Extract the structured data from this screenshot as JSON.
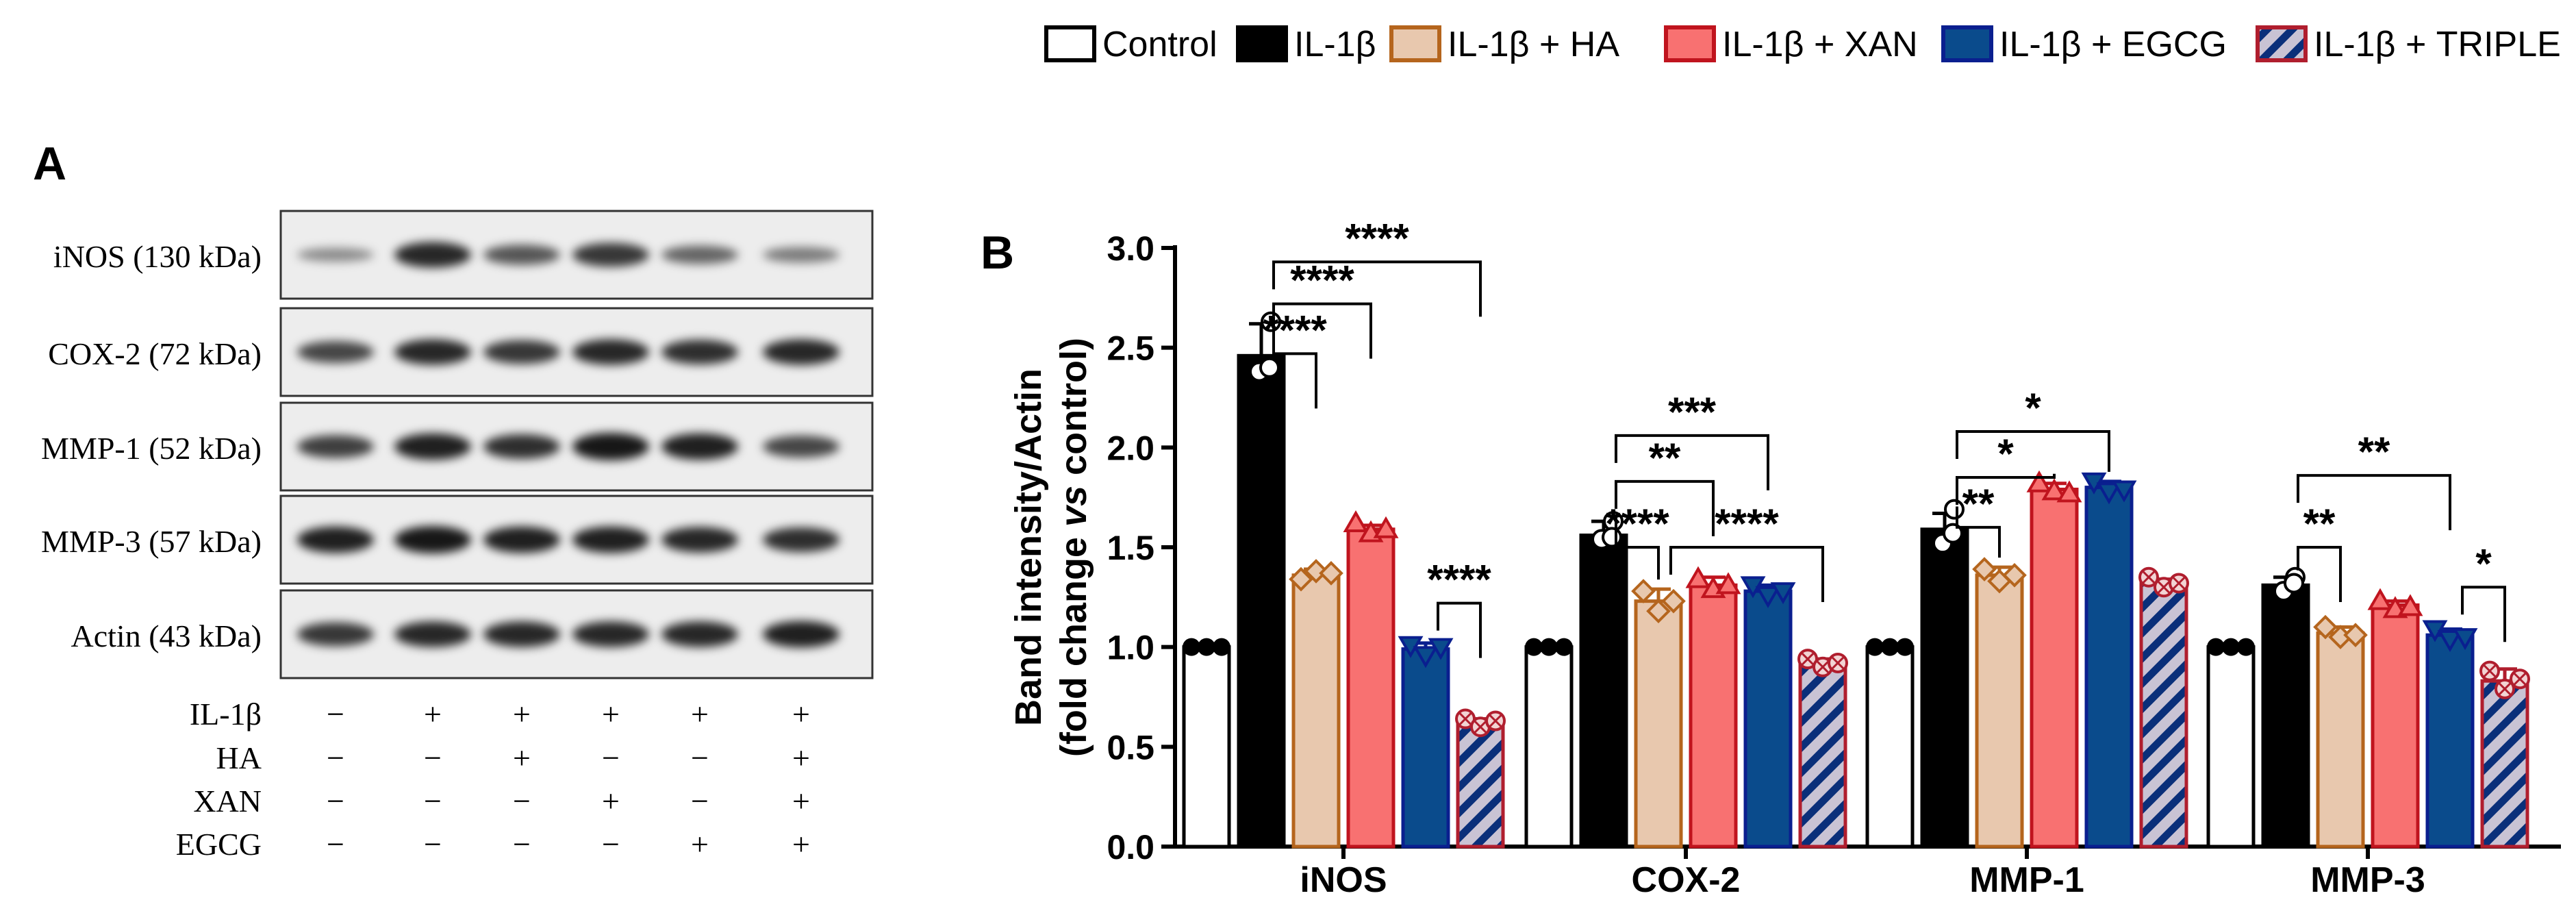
{
  "legend": [
    {
      "label": "Control",
      "fill": "#ffffff",
      "stroke": "#000000",
      "pattern": false
    },
    {
      "label": "IL-1β",
      "fill": "#000000",
      "stroke": "#000000",
      "pattern": false
    },
    {
      "label": "IL-1β + HA",
      "fill": "#e8c8ae",
      "stroke": "#b5651d",
      "pattern": false
    },
    {
      "label": "IL-1β + XAN",
      "fill": "#f87171",
      "stroke": "#c0141e",
      "pattern": false
    },
    {
      "label": "IL-1β + EGCG",
      "fill": "#0a4b8c",
      "stroke": "#0a1f8f",
      "pattern": false
    },
    {
      "label": "IL-1β + TRIPLE",
      "fill": "#c9c3d4",
      "stroke": "#b01e2e",
      "pattern": true
    }
  ],
  "panel_a": {
    "label": "A",
    "blots": [
      "iNOS (130 kDa)",
      "COX-2 (72 kDa)",
      "MMP-1 (52 kDa)",
      "MMP-3 (57 kDa)",
      "Actin (43 kDa)"
    ],
    "conditions": [
      {
        "name": "IL-1β",
        "signs": [
          "−",
          "+",
          "+",
          "+",
          "+",
          "+"
        ]
      },
      {
        "name": "HA",
        "signs": [
          "−",
          "−",
          "+",
          "−",
          "−",
          "+"
        ]
      },
      {
        "name": "XAN",
        "signs": [
          "−",
          "−",
          "−",
          "+",
          "−",
          "+"
        ]
      },
      {
        "name": "EGCG",
        "signs": [
          "−",
          "−",
          "−",
          "−",
          "+",
          "+"
        ]
      }
    ]
  },
  "panel_b": {
    "label": "B"
  },
  "chart_data": {
    "type": "bar",
    "title": "",
    "xlabel": "",
    "ylabel": "Band intensity/Actin",
    "ylabel2_prefix": "(fold change ",
    "ylabel2_italic": "vs",
    "ylabel2_suffix": " control)",
    "ylim": [
      0,
      3.0
    ],
    "yticks": [
      "0.0",
      "0.5",
      "1.0",
      "1.5",
      "2.0",
      "2.5",
      "3.0"
    ],
    "categories": [
      "iNOS",
      "COX-2",
      "MMP-1",
      "MMP-3"
    ],
    "series": [
      {
        "name": "Control",
        "values": [
          1.0,
          1.0,
          1.0,
          1.0
        ],
        "errors": [
          0.0,
          0.0,
          0.0,
          0.0
        ],
        "points": [
          [
            1.0,
            1.0,
            1.0
          ],
          [
            1.0,
            1.0,
            1.0
          ],
          [
            1.0,
            1.0,
            1.0
          ],
          [
            1.0,
            1.0,
            1.0
          ]
        ]
      },
      {
        "name": "IL-1β",
        "values": [
          2.46,
          1.56,
          1.59,
          1.31
        ],
        "errors": [
          0.16,
          0.07,
          0.08,
          0.04
        ],
        "points": [
          [
            2.63,
            2.38,
            2.4
          ],
          [
            1.63,
            1.54,
            1.55
          ],
          [
            1.69,
            1.52,
            1.57
          ],
          [
            1.35,
            1.28,
            1.32
          ]
        ]
      },
      {
        "name": "IL-1β + HA",
        "values": [
          1.36,
          1.23,
          1.36,
          1.07
        ],
        "errors": [
          0.03,
          0.06,
          0.04,
          0.03
        ],
        "points": [
          [
            1.34,
            1.38,
            1.37
          ],
          [
            1.28,
            1.18,
            1.23
          ],
          [
            1.39,
            1.33,
            1.36
          ],
          [
            1.1,
            1.05,
            1.06
          ]
        ]
      },
      {
        "name": "IL-1β + XAN",
        "values": [
          1.59,
          1.31,
          1.79,
          1.21
        ],
        "errors": [
          0.02,
          0.04,
          0.03,
          0.02
        ],
        "points": [
          [
            1.62,
            1.57,
            1.59
          ],
          [
            1.34,
            1.29,
            1.31
          ],
          [
            1.82,
            1.78,
            1.77
          ],
          [
            1.23,
            1.19,
            1.2
          ]
        ]
      },
      {
        "name": "IL-1β + EGCG",
        "values": [
          0.99,
          1.28,
          1.8,
          1.06
        ],
        "errors": [
          0.03,
          0.03,
          0.03,
          0.03
        ],
        "points": [
          [
            1.01,
            0.96,
            1.0
          ],
          [
            1.31,
            1.26,
            1.28
          ],
          [
            1.83,
            1.78,
            1.79
          ],
          [
            1.09,
            1.04,
            1.05
          ]
        ]
      },
      {
        "name": "IL-1β + TRIPLE",
        "values": [
          0.62,
          0.92,
          1.32,
          0.83
        ],
        "errors": [
          0.02,
          0.02,
          0.02,
          0.06
        ],
        "points": [
          [
            0.64,
            0.6,
            0.63
          ],
          [
            0.94,
            0.9,
            0.92
          ],
          [
            1.35,
            1.3,
            1.32
          ],
          [
            0.88,
            0.79,
            0.84
          ]
        ]
      }
    ],
    "significance": [
      {
        "group": 0,
        "from": 1,
        "to": 5,
        "label": "****",
        "level": 2.93
      },
      {
        "group": 0,
        "from": 1,
        "to": 3,
        "label": "****",
        "level": 2.72
      },
      {
        "group": 0,
        "from": 1,
        "to": 2,
        "label": "****",
        "level": 2.47
      },
      {
        "group": 0,
        "from": 4,
        "to": 5,
        "label": "****",
        "level": 1.22
      },
      {
        "group": 1,
        "from": 1,
        "to": 4,
        "label": "***",
        "level": 2.06
      },
      {
        "group": 1,
        "from": 1,
        "to": 3,
        "label": "**",
        "level": 1.83
      },
      {
        "group": 1,
        "from": 1,
        "to": 2,
        "label": "****",
        "level": 1.5
      },
      {
        "group": 1,
        "from": 2,
        "to": 5,
        "label": "****",
        "level": 1.5
      },
      {
        "group": 2,
        "from": 1,
        "to": 4,
        "label": "*",
        "level": 2.08
      },
      {
        "group": 2,
        "from": 1,
        "to": 3,
        "label": "*",
        "level": 1.85
      },
      {
        "group": 2,
        "from": 1,
        "to": 2,
        "label": "**",
        "level": 1.6
      },
      {
        "group": 3,
        "from": 1,
        "to": 4,
        "label": "**",
        "level": 1.86
      },
      {
        "group": 3,
        "from": 1,
        "to": 2,
        "label": "**",
        "level": 1.5
      },
      {
        "group": 3,
        "from": 4,
        "to": 5,
        "label": "*",
        "level": 1.3
      }
    ]
  }
}
